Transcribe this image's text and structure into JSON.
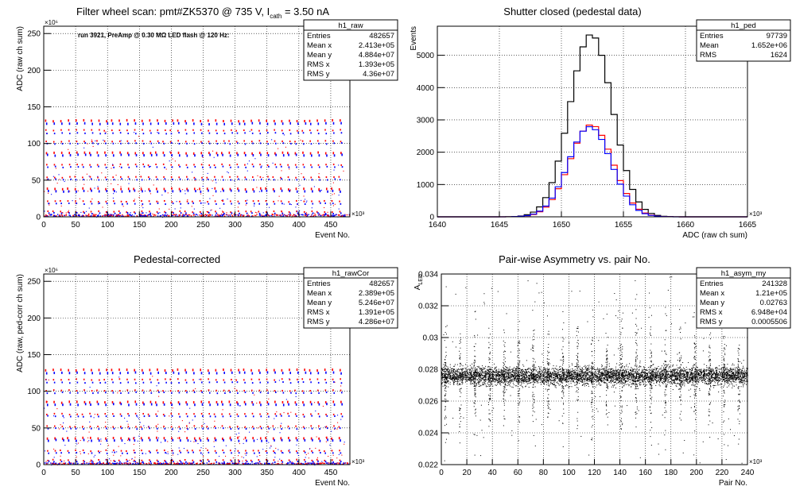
{
  "chart_data": [
    {
      "id": "raw",
      "type": "scatter",
      "title": "Filter wheel scan: pmt#ZK5370 @   735 V, I",
      "title_sub": "cath",
      "title_tail": " = 3.50 nA",
      "annotation": "run 3921, PreAmp @ 0.30 MΩ LED flash @  120 Hz:",
      "ylabel": "ADC (raw ch sum)",
      "xlabel": "Event No.",
      "xlim": [
        0,
        480
      ],
      "ylim": [
        0,
        260
      ],
      "x_exponent": "×10³",
      "y_exponent": "×10⁶",
      "x_ticks": [
        0,
        50,
        100,
        150,
        200,
        250,
        300,
        350,
        400,
        450
      ],
      "y_ticks": [
        0,
        50,
        100,
        150,
        200,
        250
      ],
      "grid": true,
      "stats": {
        "name": "h1_raw",
        "rows": [
          [
            "Entries",
            "482657"
          ],
          [
            "Mean x",
            "2.413e+05"
          ],
          [
            "Mean y",
            "4.884e+07"
          ],
          [
            "RMS x",
            "1.393e+05"
          ],
          [
            "RMS y",
            "4.36e+07"
          ]
        ]
      },
      "series": [
        {
          "color": "#ff0000",
          "levels": [
            131,
            118,
            103,
            87,
            71,
            54,
            38,
            21,
            7
          ]
        },
        {
          "color": "#0000ff",
          "levels": [
            127,
            114,
            100,
            84,
            68,
            51,
            35,
            18,
            5
          ]
        }
      ],
      "step_period": 11.5,
      "baseline": [
        0,
        3
      ]
    },
    {
      "id": "ped",
      "type": "line",
      "title": "Shutter closed (pedestal data)",
      "ylabel": "Events",
      "xlabel": "ADC (raw ch sum)",
      "xlim": [
        1640,
        1665
      ],
      "ylim": [
        0,
        5900
      ],
      "x_exponent": "×10³",
      "x_ticks": [
        1640,
        1645,
        1650,
        1655,
        1660,
        1665
      ],
      "y_ticks": [
        0,
        1000,
        2000,
        3000,
        4000,
        5000
      ],
      "grid": true,
      "stats": {
        "name": "h1_ped",
        "rows": [
          [
            "Entries",
            "97739"
          ],
          [
            "Mean",
            "1.652e+06"
          ],
          [
            "RMS",
            "1624"
          ]
        ]
      },
      "series": [
        {
          "color": "#000000",
          "mean": 1652.4,
          "sigma": 1.72,
          "peak": 5650
        },
        {
          "color": "#ff0000",
          "mean": 1652.4,
          "sigma": 1.72,
          "peak": 2850
        },
        {
          "color": "#0000ff",
          "mean": 1652.3,
          "sigma": 1.72,
          "peak": 2790
        }
      ],
      "bin_width": 0.5
    },
    {
      "id": "rawcor",
      "type": "scatter",
      "title": "Pedestal-corrected",
      "ylabel": "ADC (raw, ped-corr ch sum)",
      "xlabel": "Event No.",
      "xlim": [
        0,
        480
      ],
      "ylim": [
        0,
        260
      ],
      "x_exponent": "×10³",
      "y_exponent": "×10⁶",
      "x_ticks": [
        0,
        50,
        100,
        150,
        200,
        250,
        300,
        350,
        400,
        450
      ],
      "y_ticks": [
        0,
        50,
        100,
        150,
        200,
        250
      ],
      "grid": true,
      "stats": {
        "name": "h1_rawCor",
        "rows": [
          [
            "Entries",
            "482657"
          ],
          [
            "Mean x",
            "2.389e+05"
          ],
          [
            "Mean y",
            "5.246e+07"
          ],
          [
            "RMS x",
            "1.391e+05"
          ],
          [
            "RMS y",
            "4.286e+07"
          ]
        ]
      },
      "series": [
        {
          "color": "#ff0000",
          "levels": [
            129,
            116,
            101,
            85,
            69,
            52,
            36,
            19,
            6
          ]
        },
        {
          "color": "#0000ff",
          "levels": [
            125,
            112,
            98,
            82,
            66,
            49,
            33,
            16,
            4
          ]
        }
      ],
      "step_period": 11.5,
      "baseline": [
        0,
        2
      ]
    },
    {
      "id": "asym",
      "type": "scatter",
      "title": "Pair-wise Asymmetry vs. pair No.",
      "ylabel": "A",
      "ylabel_sub": "LED",
      "xlabel": "Pair No.",
      "xlim": [
        0,
        240
      ],
      "ylim": [
        0.022,
        0.034
      ],
      "x_exponent": "×10³",
      "x_ticks": [
        0,
        20,
        40,
        60,
        80,
        100,
        120,
        140,
        160,
        180,
        200,
        220,
        240
      ],
      "y_ticks": [
        0.022,
        0.024,
        0.026,
        0.028,
        0.03,
        0.032,
        0.034
      ],
      "y_tick_labels": [
        "0.022",
        "0.024",
        "0.026",
        "0.028",
        "0.03",
        "0.032",
        "0.034"
      ],
      "grid": true,
      "stats": {
        "name": "h1_asym_my",
        "rows": [
          [
            "Entries",
            "241328"
          ],
          [
            "Mean x",
            "1.21e+05"
          ],
          [
            "Mean y",
            "0.02763"
          ],
          [
            "RMS x",
            "6.948e+04"
          ],
          [
            "RMS y",
            "0.0005506"
          ]
        ]
      },
      "center": 0.0276,
      "spread": 0.0005,
      "spike_period": 11.5
    }
  ]
}
